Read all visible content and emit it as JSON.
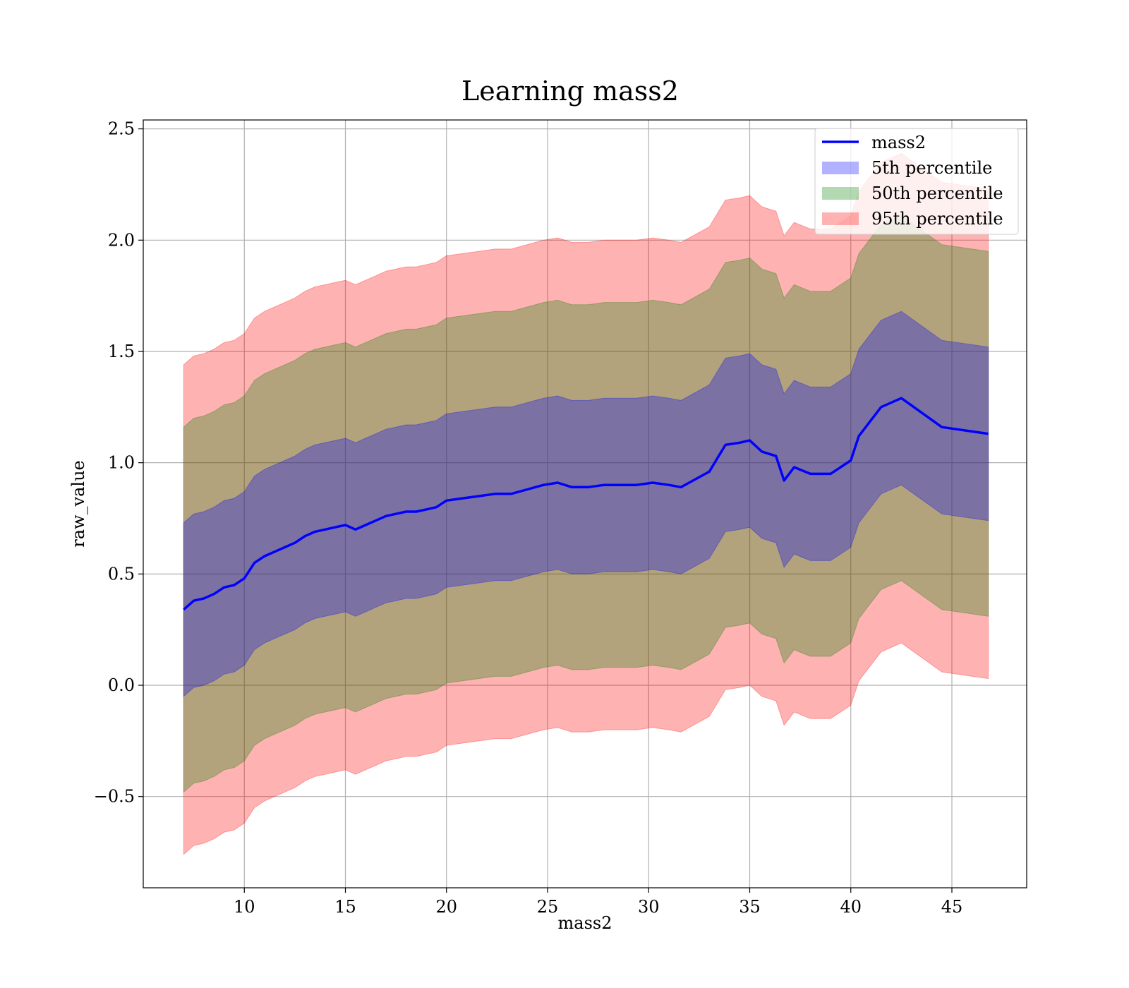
{
  "chart_data": {
    "type": "area",
    "title": "Learning mass2",
    "xlabel": "mass2",
    "ylabel": "raw_value",
    "xlim": [
      5.0,
      48.7
    ],
    "ylim": [
      -0.91,
      2.54
    ],
    "x_ticks": [
      10,
      15,
      20,
      25,
      30,
      35,
      40,
      45
    ],
    "x_tick_labels": [
      "10",
      "15",
      "20",
      "25",
      "30",
      "35",
      "40",
      "45"
    ],
    "y_ticks": [
      -0.5,
      0.0,
      0.5,
      1.0,
      1.5,
      2.0,
      2.5
    ],
    "y_tick_labels": [
      "−0.5",
      "0.0",
      "0.5",
      "1.0",
      "1.5",
      "2.0",
      "2.5"
    ],
    "grid": true,
    "legend_position": "top-right",
    "colors": {
      "line": "#0000ff",
      "band5": "#0000ff",
      "band50": "#008000",
      "band95": "#ff0000"
    },
    "x": [
      7.0,
      7.5,
      8.0,
      8.5,
      9.0,
      9.5,
      10.0,
      10.5,
      11.0,
      11.5,
      12.0,
      12.5,
      13.0,
      13.5,
      14.0,
      14.5,
      15.0,
      15.5,
      16.0,
      16.5,
      17.0,
      17.5,
      18.0,
      18.5,
      19.0,
      19.5,
      20.0,
      20.8,
      21.6,
      22.4,
      23.2,
      24.0,
      24.8,
      25.5,
      26.2,
      27.0,
      27.8,
      28.6,
      29.4,
      30.2,
      31.0,
      31.6,
      32.2,
      33.0,
      33.8,
      34.5,
      35.0,
      35.6,
      36.3,
      36.7,
      37.2,
      38.0,
      39.0,
      40.0,
      40.4,
      41.5,
      42.5,
      44.5,
      46.8
    ],
    "series": [
      {
        "name": "mass2",
        "role": "line",
        "values": [
          0.34,
          0.38,
          0.39,
          0.41,
          0.44,
          0.45,
          0.48,
          0.55,
          0.58,
          0.6,
          0.62,
          0.64,
          0.67,
          0.69,
          0.7,
          0.71,
          0.72,
          0.7,
          0.72,
          0.74,
          0.76,
          0.77,
          0.78,
          0.78,
          0.79,
          0.8,
          0.83,
          0.84,
          0.85,
          0.86,
          0.86,
          0.88,
          0.9,
          0.91,
          0.89,
          0.89,
          0.9,
          0.9,
          0.9,
          0.91,
          0.9,
          0.89,
          0.92,
          0.96,
          1.08,
          1.09,
          1.1,
          1.05,
          1.03,
          0.92,
          0.98,
          0.95,
          0.95,
          1.01,
          1.12,
          1.25,
          1.29,
          1.16,
          1.13
        ]
      },
      {
        "name": "5th percentile",
        "role": "band",
        "offset": 0.39
      },
      {
        "name": "50th percentile",
        "role": "band",
        "offset": 0.82
      },
      {
        "name": "95th percentile",
        "role": "band",
        "offset": 1.1
      }
    ]
  }
}
